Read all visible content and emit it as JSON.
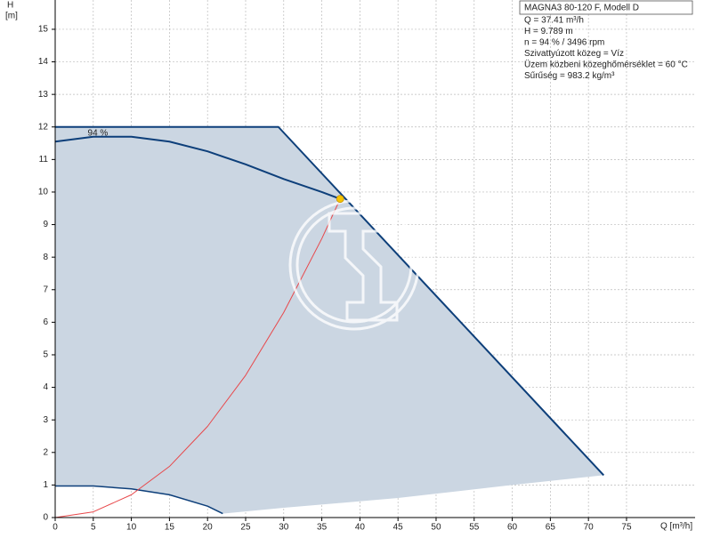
{
  "chart_data": {
    "type": "line",
    "y_label": "H",
    "y_unit": "[m]",
    "x_label": "Q [m³/h]",
    "xlim": [
      0,
      84
    ],
    "ylim": [
      0,
      15.9
    ],
    "xticks": [
      0,
      5,
      10,
      15,
      20,
      25,
      30,
      35,
      40,
      45,
      50,
      55,
      60,
      65,
      70,
      75
    ],
    "yticks": [
      0,
      1,
      2,
      3,
      4,
      5,
      6,
      7,
      8,
      9,
      10,
      11,
      12,
      13,
      14,
      15
    ],
    "grid": true,
    "series": [
      {
        "color": "#cbd6e2",
        "fill": true,
        "x": [
          0,
          29.3,
          72,
          60,
          45,
          30,
          22,
          20,
          15,
          10,
          5,
          0
        ],
        "values": [
          12,
          12,
          1.3,
          1.0,
          0.6,
          0.3,
          0.12,
          0.35,
          0.7,
          0.88,
          0.97,
          0.97
        ]
      },
      {
        "color": "#0d3f7a",
        "width": 2,
        "x": [
          0,
          29.3,
          72
        ],
        "values": [
          12,
          12,
          1.3
        ]
      },
      {
        "color": "#0d3f7a",
        "width": 2,
        "x": [
          0,
          5,
          10,
          15,
          20,
          25,
          30,
          35,
          37.41
        ],
        "values": [
          11.55,
          11.7,
          11.7,
          11.55,
          11.25,
          10.85,
          10.4,
          10.0,
          9.789
        ]
      },
      {
        "color": "#0d3f7a",
        "width": 1.5,
        "x": [
          0,
          5,
          10,
          15,
          20,
          22
        ],
        "values": [
          0.97,
          0.97,
          0.88,
          0.7,
          0.35,
          0.12
        ]
      },
      {
        "color": "#e8474a",
        "width": 1,
        "x": [
          0,
          5,
          10,
          15,
          20,
          25,
          30,
          35,
          37.41
        ],
        "values": [
          0,
          0.175,
          0.7,
          1.57,
          2.8,
          4.37,
          6.3,
          8.57,
          9.789
        ]
      }
    ],
    "operating_point": {
      "x": 37.41,
      "y": 9.789,
      "color": "#f5c400"
    },
    "annotation": {
      "text": "94 %",
      "x": 5.6,
      "y": 11.8
    },
    "info": {
      "title": "MAGNA3 80-120 F, Modell D",
      "lines": [
        "Q = 37.41 m³/h",
        "H = 9.789 m",
        "n = 94 % / 3496 rpm",
        "Szivattyúzott közeg = Víz",
        "Üzem közbeni közeghőmérséklet = 60 °C",
        "Sűrűség = 983.2 kg/m³"
      ]
    }
  }
}
